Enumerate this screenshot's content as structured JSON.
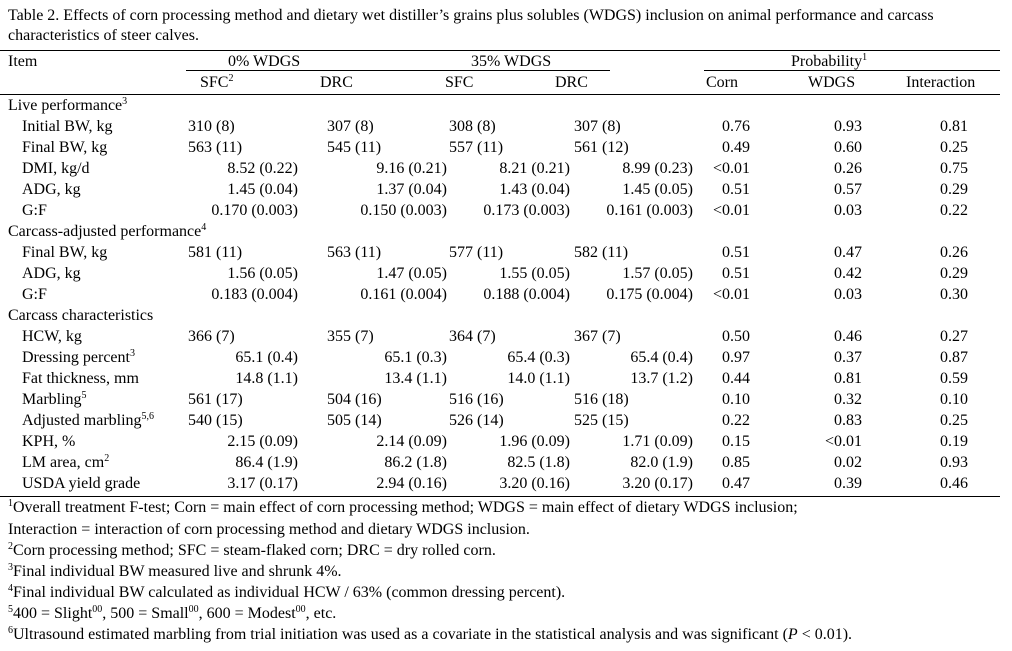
{
  "caption": "Table 2. Effects of corn processing method and dietary wet distiller’s grains plus solubles (WDGS) inclusion on animal performance and carcass characteristics of steer calves.",
  "header": {
    "item": "Item",
    "group_0": "0% WDGS",
    "group_35": "35% WDGS",
    "probability": "Probability",
    "probability_sup": "1",
    "sfc": "SFC",
    "sfc_sup": "2",
    "drc": "DRC",
    "sfc2": "SFC",
    "drc2": "DRC",
    "corn": "Corn",
    "wdgs": "WDGS",
    "interaction": "Interaction"
  },
  "sections": [
    {
      "title": "Live performance",
      "sup": "3",
      "rows": [
        {
          "label": "Initial BW, kg",
          "sup": "",
          "cells": [
            "310 (8)",
            "307 (8)",
            "308 (8)",
            "307 (8)"
          ],
          "p": [
            "0.76",
            "0.93",
            "0.81"
          ]
        },
        {
          "label": "Final BW, kg",
          "sup": "",
          "cells": [
            "563 (11)",
            "545 (11)",
            "557 (11)",
            "561 (12)"
          ],
          "p": [
            "0.49",
            "0.60",
            "0.25"
          ]
        },
        {
          "label": "DMI, kg/d",
          "sup": "",
          "cells": [
            "8.52 (0.22)",
            "9.16 (0.21)",
            "8.21 (0.21)",
            "8.99 (0.23)"
          ],
          "p": [
            "<0.01",
            "0.26",
            "0.75"
          ]
        },
        {
          "label": "ADG, kg",
          "sup": "",
          "cells": [
            "1.45 (0.04)",
            "1.37 (0.04)",
            "1.43 (0.04)",
            "1.45 (0.05)"
          ],
          "p": [
            "0.51",
            "0.57",
            "0.29"
          ]
        },
        {
          "label": "G:F",
          "sup": "",
          "cells": [
            "0.170 (0.003)",
            "0.150 (0.003)",
            "0.173 (0.003)",
            "0.161 (0.003)"
          ],
          "p": [
            "<0.01",
            "0.03",
            "0.22"
          ]
        }
      ]
    },
    {
      "title": "Carcass-adjusted performance",
      "sup": "4",
      "rows": [
        {
          "label": "Final BW, kg",
          "sup": "",
          "cells": [
            "581 (11)",
            "563 (11)",
            "577 (11)",
            "582 (11)"
          ],
          "p": [
            "0.51",
            "0.47",
            "0.26"
          ]
        },
        {
          "label": "ADG, kg",
          "sup": "",
          "cells": [
            "1.56 (0.05)",
            "1.47 (0.05)",
            "1.55 (0.05)",
            "1.57 (0.05)"
          ],
          "p": [
            "0.51",
            "0.42",
            "0.29"
          ]
        },
        {
          "label": "G:F",
          "sup": "",
          "cells": [
            "0.183 (0.004)",
            "0.161 (0.004)",
            "0.188 (0.004)",
            "0.175 (0.004)"
          ],
          "p": [
            "<0.01",
            "0.03",
            "0.30"
          ]
        }
      ]
    },
    {
      "title": "Carcass characteristics",
      "sup": "",
      "rows": [
        {
          "label": "HCW, kg",
          "sup": "",
          "cells": [
            "366 (7)",
            "355 (7)",
            "364 (7)",
            "367 (7)"
          ],
          "p": [
            "0.50",
            "0.46",
            "0.27"
          ]
        },
        {
          "label": "Dressing percent",
          "sup": "3",
          "cells": [
            "65.1 (0.4)",
            "65.1 (0.3)",
            "65.4 (0.3)",
            "65.4 (0.4)"
          ],
          "p": [
            "0.97",
            "0.37",
            "0.87"
          ]
        },
        {
          "label": "Fat thickness, mm",
          "sup": "",
          "cells": [
            "14.8 (1.1)",
            "13.4 (1.1)",
            "14.0 (1.1)",
            "13.7 (1.2)"
          ],
          "p": [
            "0.44",
            "0.81",
            "0.59"
          ]
        },
        {
          "label": "Marbling",
          "sup": "5",
          "cells": [
            "561 (17)",
            "504 (16)",
            "516 (16)",
            "516 (18)"
          ],
          "p": [
            "0.10",
            "0.32",
            "0.10"
          ]
        },
        {
          "label": "Adjusted marbling",
          "sup": "5,6",
          "cells": [
            "540 (15)",
            "505 (14)",
            "526 (14)",
            "525 (15)"
          ],
          "p": [
            "0.22",
            "0.83",
            "0.25"
          ]
        },
        {
          "label": "KPH, %",
          "sup": "",
          "cells": [
            "2.15 (0.09)",
            "2.14 (0.09)",
            "1.96 (0.09)",
            "1.71 (0.09)"
          ],
          "p": [
            "0.15",
            "<0.01",
            "0.19"
          ]
        },
        {
          "label": "LM area, cm",
          "sup": "2",
          "cells": [
            "86.4 (1.9)",
            "86.2 (1.8)",
            "82.5 (1.8)",
            "82.0 (1.9)"
          ],
          "p": [
            "0.85",
            "0.02",
            "0.93"
          ]
        },
        {
          "label": "USDA yield grade",
          "sup": "",
          "cells": [
            "3.17 (0.17)",
            "2.94 (0.16)",
            "3.20 (0.16)",
            "3.20 (0.17)"
          ],
          "p": [
            "0.47",
            "0.39",
            "0.46"
          ]
        }
      ]
    }
  ],
  "footnotes": {
    "f1_mark": "1",
    "f1_line1": "Overall treatment F-test; Corn = main effect of corn processing method; WDGS = main effect of dietary WDGS inclusion;",
    "f1_line2": "Interaction = interaction of corn processing method and dietary WDGS inclusion.",
    "f2_mark": "2",
    "f2": "Corn processing method; SFC = steam-flaked corn; DRC = dry rolled corn.",
    "f3_mark": "3",
    "f3": "Final individual BW measured live and shrunk 4%.",
    "f4_mark": "4",
    "f4": "Final individual BW calculated as individual HCW / 63% (common dressing percent).",
    "f5_mark": "5",
    "f5_a": "400 = Slight",
    "f5_a_sup": "00",
    "f5_b": ", 500 = Small",
    "f5_b_sup": "00",
    "f5_c": ", 600 = Modest",
    "f5_c_sup": "00",
    "f5_d": ", etc.",
    "f6_mark": "6",
    "f6_main": "Ultrasound estimated marbling from trial initiation was used as a covariate in the statistical analysis and was significant (",
    "f6_p": "P",
    "f6_end": " < 0.01)."
  }
}
